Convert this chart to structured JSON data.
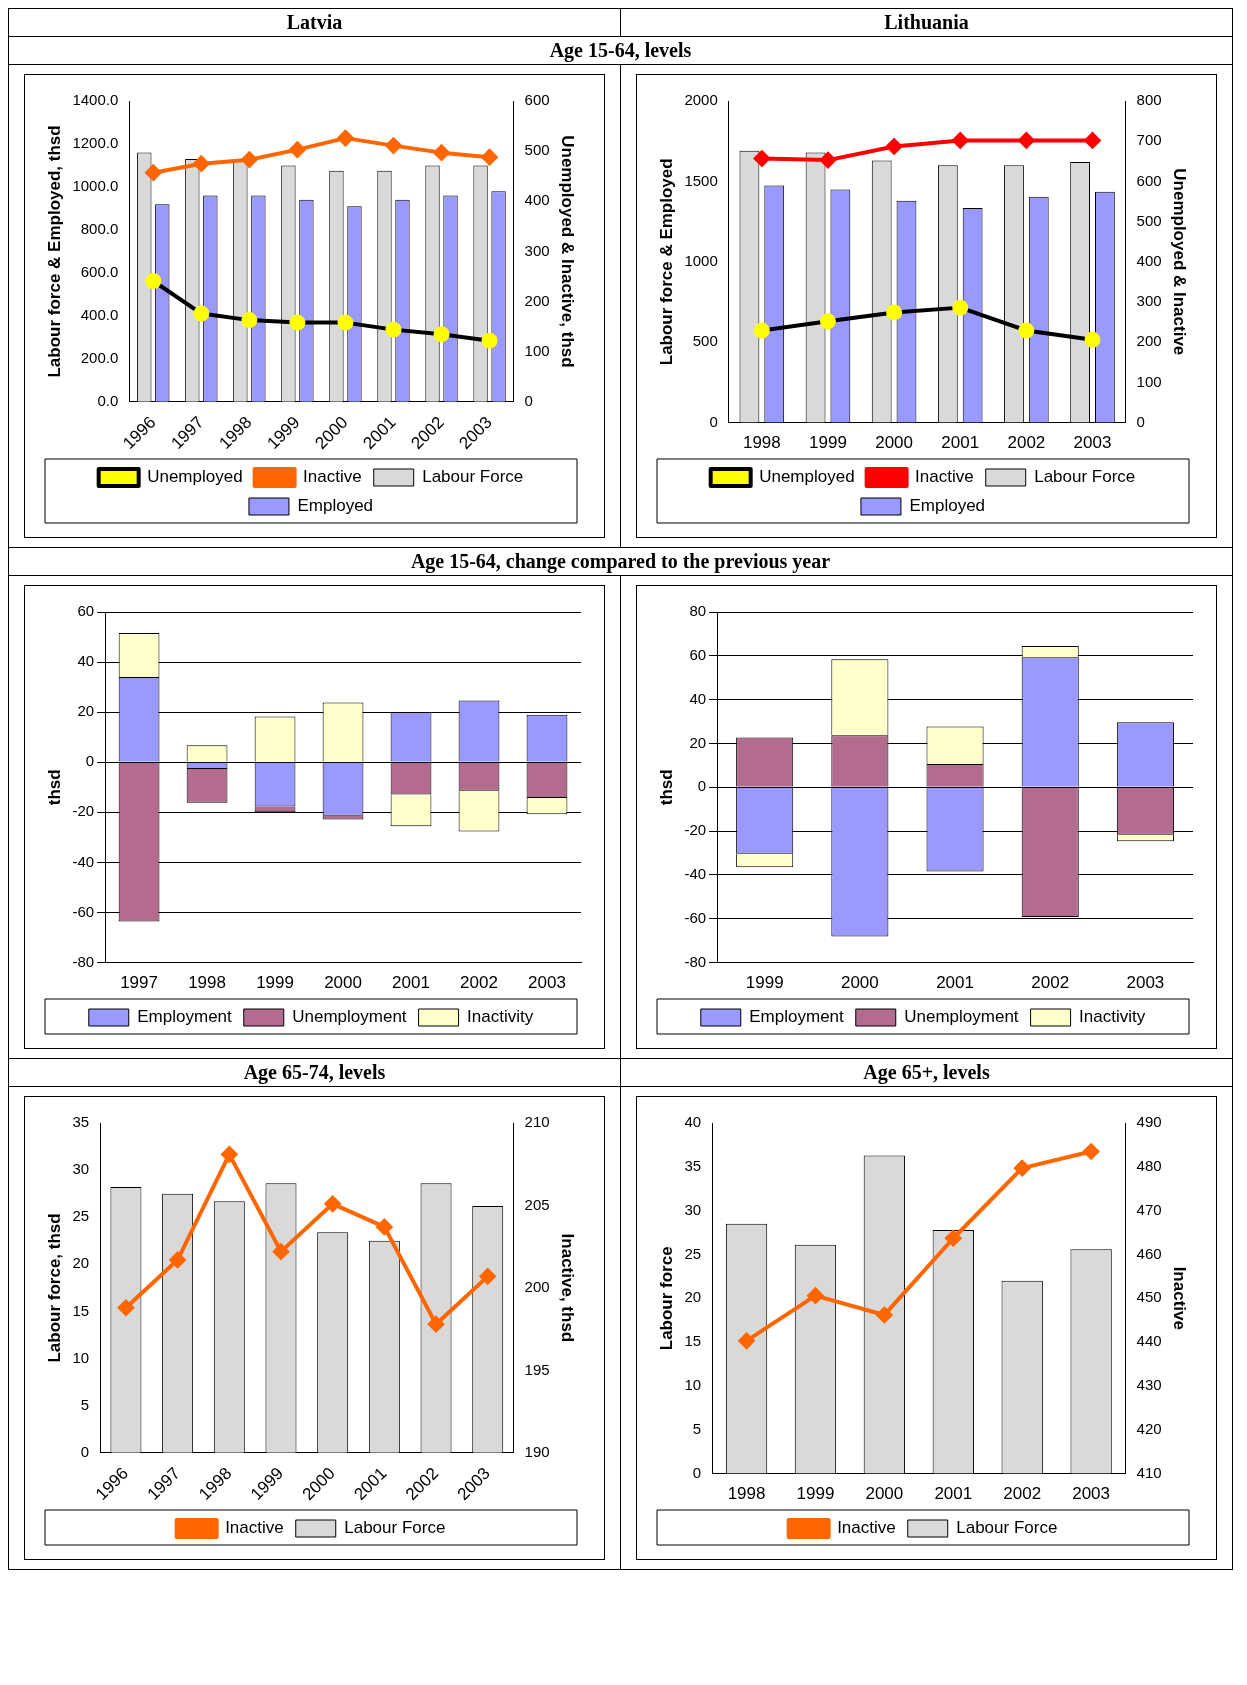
{
  "chart_data": [
    {
      "type": "bar",
      "title": "Latvia",
      "subtitle": "Age 15-64, levels",
      "ylabel": "Labour force & Employed, thsd",
      "y2label": "Unemployed & Inactive, thsd",
      "categories": [
        "1996",
        "1997",
        "1998",
        "1999",
        "2000",
        "2001",
        "2002",
        "2003"
      ],
      "series": [
        {
          "name": "Labour Force",
          "color": "#d9d9d9",
          "values": [
            1160,
            1130,
            1120,
            1100,
            1075,
            1075,
            1100,
            1100
          ]
        },
        {
          "name": "Employed",
          "color": "#9999ff",
          "values": [
            920,
            960,
            960,
            940,
            910,
            940,
            960,
            980
          ]
        },
        {
          "name": "Unemployed",
          "type": "line",
          "axis": "y2",
          "color": "#000000",
          "marker": "circle",
          "values": [
            241,
            176,
            163,
            158,
            158,
            144,
            135,
            122
          ]
        },
        {
          "name": "Inactive",
          "type": "line",
          "axis": "y2",
          "color": "#ff6600",
          "marker": "diamond",
          "values": [
            457,
            475,
            483,
            503,
            526,
            511,
            497,
            488
          ]
        }
      ],
      "ylim": [
        0,
        1400
      ],
      "yticks": [
        {
          "value": 0,
          "label": "0.0"
        },
        {
          "value": 200,
          "label": "200.0"
        },
        {
          "value": 400,
          "label": "400.0"
        },
        {
          "value": 600,
          "label": "600.0"
        },
        {
          "value": 800,
          "label": "800.0"
        },
        {
          "value": 1000,
          "label": "1000.0"
        },
        {
          "value": 1200,
          "label": "1200.0"
        },
        {
          "value": 1400,
          "label": "1400.0"
        }
      ],
      "y2lim": [
        0,
        600
      ],
      "y2ticks": [
        0,
        100,
        200,
        300,
        400,
        500,
        600
      ],
      "grid": false,
      "legend": "bottom"
    },
    {
      "type": "bar",
      "title": "Lithuania",
      "ylabel": "Labour force & Employed",
      "y2label": "Unemployed & Inactive",
      "categories": [
        "1998",
        "1999",
        "2000",
        "2001",
        "2002",
        "2003"
      ],
      "series": [
        {
          "name": "Labour Force",
          "color": "#d9d9d9",
          "values": [
            1690,
            1680,
            1630,
            1600,
            1600,
            1620
          ]
        },
        {
          "name": "Employed",
          "color": "#9999ff",
          "values": [
            1475,
            1450,
            1380,
            1335,
            1405,
            1435
          ]
        },
        {
          "name": "Unemployed",
          "type": "line",
          "axis": "y2",
          "color": "#000000",
          "marker": "circle",
          "values": [
            229,
            252,
            274,
            286,
            229,
            206
          ]
        },
        {
          "name": "Inactive",
          "type": "line",
          "axis": "y2",
          "color": "#ff0000",
          "marker": "diamond",
          "values": [
            657,
            653,
            687,
            702,
            702,
            702
          ]
        }
      ],
      "ylim": [
        0,
        2000
      ],
      "yticks": [
        0,
        500,
        1000,
        1500,
        2000
      ],
      "y2lim": [
        0,
        800
      ],
      "y2ticks": [
        0,
        100,
        200,
        300,
        400,
        500,
        600,
        700,
        800
      ],
      "grid": false,
      "legend": "bottom"
    },
    {
      "type": "bar",
      "subtitle": "Age 15-64, change compared to the previous year",
      "ylabel": "thsd",
      "stacked": true,
      "categories": [
        "1997",
        "1998",
        "1999",
        "2000",
        "2001",
        "2002",
        "2003"
      ],
      "series": [
        {
          "name": "Employment",
          "color": "#9999ff",
          "values": [
            34,
            -2.7,
            -17.7,
            -21.4,
            20.1,
            24.7,
            19
          ]
        },
        {
          "name": "Unemployment",
          "color": "#b36b8f",
          "values": [
            -63.6,
            -13.5,
            -2.3,
            -1.5,
            -12.9,
            -11.4,
            -14.3
          ]
        },
        {
          "name": "Inactivity",
          "color": "#ffffcc",
          "values": [
            17.6,
            6.8,
            18.3,
            23.9,
            -12.7,
            -16.2,
            -6.5
          ]
        }
      ],
      "ylim": [
        -80,
        60
      ],
      "yticks": [
        -80,
        -60,
        -40,
        -20,
        0,
        20,
        40,
        60
      ],
      "grid": "y",
      "legend": "bottom"
    },
    {
      "type": "bar",
      "ylabel": "thsd",
      "stacked": true,
      "categories": [
        "1999",
        "2000",
        "2001",
        "2002",
        "2003"
      ],
      "series": [
        {
          "name": "Employment",
          "color": "#9999ff",
          "values": [
            -30.3,
            -68.1,
            -38.4,
            59.4,
            29.7
          ]
        },
        {
          "name": "Unemployment",
          "color": "#b36b8f",
          "values": [
            22.7,
            23.8,
            10.6,
            -59.2,
            -21.6
          ]
        },
        {
          "name": "Inactivity",
          "color": "#ffffcc",
          "values": [
            -6.2,
            34.6,
            17.2,
            5.1,
            -3
          ]
        }
      ],
      "ylim": [
        -80,
        80
      ],
      "yticks": [
        -80,
        -60,
        -40,
        -20,
        0,
        20,
        40,
        60,
        80
      ],
      "grid": "y",
      "legend": "bottom"
    },
    {
      "type": "bar",
      "subtitle": "Age 65-74, levels",
      "ylabel": "Labour force, thsd",
      "y2label": "Inactive, thsd",
      "categories": [
        "1996",
        "1997",
        "1998",
        "1999",
        "2000",
        "2001",
        "2002",
        "2003"
      ],
      "series": [
        {
          "name": "Labour Force",
          "color": "#d9d9d9",
          "values": [
            28.2,
            27.5,
            26.7,
            28.6,
            23.4,
            22.5,
            28.6,
            26.2
          ]
        },
        {
          "name": "Inactive",
          "type": "line",
          "axis": "y2",
          "color": "#ff6600",
          "marker": "diamond",
          "values": [
            198.8,
            201.7,
            208.1,
            202.2,
            205.1,
            203.7,
            197.8,
            200.7
          ]
        }
      ],
      "ylim": [
        0,
        35
      ],
      "yticks": [
        0,
        5,
        10,
        15,
        20,
        25,
        30,
        35
      ],
      "y2lim": [
        190,
        210
      ],
      "y2ticks": [
        190,
        195,
        200,
        205,
        210
      ],
      "grid": false,
      "legend": "bottom"
    },
    {
      "type": "bar",
      "subtitle": "Age 65+, levels",
      "ylabel": "Labour force",
      "y2label": "Inactive",
      "categories": [
        "1998",
        "1999",
        "2000",
        "2001",
        "2002",
        "2003"
      ],
      "series": [
        {
          "name": "Labour Force",
          "color": "#d9d9d9",
          "values": [
            28.5,
            26.1,
            36.3,
            27.8,
            22.0,
            25.6
          ]
        },
        {
          "name": "Inactive",
          "type": "line",
          "axis": "y2",
          "color": "#ff6600",
          "marker": "diamond",
          "values": [
            440.3,
            450.6,
            446.2,
            463.7,
            479.7,
            483.5
          ]
        }
      ],
      "ylim": [
        0,
        40
      ],
      "yticks": [
        0,
        5,
        10,
        15,
        20,
        25,
        30,
        35,
        40
      ],
      "y2lim": [
        410,
        490
      ],
      "y2ticks": [
        410,
        420,
        430,
        440,
        450,
        460,
        470,
        480,
        490
      ],
      "grid": false,
      "legend": "bottom"
    }
  ]
}
